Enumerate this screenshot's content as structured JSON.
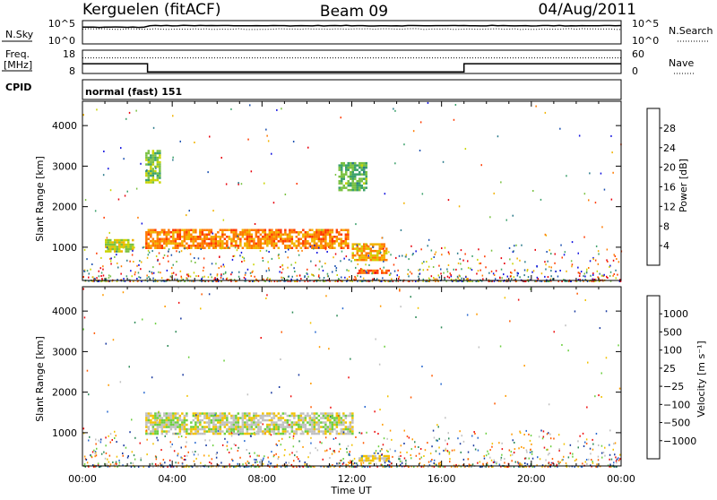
{
  "header": {
    "station": "Kerguelen (fitACF)",
    "beam": "Beam 09",
    "date": "04/Aug/2011"
  },
  "noise_panel": {
    "left_label": "N.Sky",
    "right_label": "N.Search",
    "left_ticks": [
      "10^5",
      "10^0"
    ],
    "right_ticks": [
      "10^5",
      "10^0"
    ]
  },
  "freq_panel": {
    "left_label_line1": "Freq.",
    "left_label_line2": "[MHz]",
    "right_label": "Nave",
    "left_ticks": [
      "18",
      "8"
    ],
    "right_ticks": [
      "60",
      "0"
    ]
  },
  "cpid": {
    "label": "CPID",
    "value": "normal (fast) 151"
  },
  "x_axis": {
    "label": "Time UT",
    "tick_labels": [
      "00:00",
      "04:00",
      "08:00",
      "12:00",
      "16:00",
      "20:00",
      "00:00"
    ]
  },
  "power_panel": {
    "ylabel": "Slant Range [km]",
    "y_ticks": [
      "4000",
      "3000",
      "2000",
      "1000"
    ],
    "colorbar_label": "Power [dB]",
    "colorbar_ticks": [
      "28",
      "24",
      "20",
      "16",
      "12",
      "8",
      "4"
    ],
    "colorbar_colors": [
      "#e8000a",
      "#ff3a00",
      "#ff7a00",
      "#f2b300",
      "#c9d400",
      "#7ac142",
      "#3aa06a",
      "#2a7a8a",
      "#1a4fb0",
      "#1010e0"
    ]
  },
  "velocity_panel": {
    "ylabel": "Slant Range [km]",
    "y_ticks": [
      "4000",
      "3000",
      "2000",
      "1000"
    ],
    "colorbar_label": "Velocity [m s⁻¹]",
    "colorbar_ticks": [
      "1000",
      "500",
      "100",
      "25",
      "−25",
      "−100",
      "−500",
      "−1000"
    ],
    "colorbar_colors": [
      "#1a3aa0",
      "#2a6ad0",
      "#2e8b57",
      "#6ccf3f",
      "#c0c0c0",
      "#f2c200",
      "#ff9a00",
      "#ff5a00",
      "#ee1010"
    ]
  },
  "chart_data": {
    "type": "heatmap",
    "x_range_hours": [
      0,
      24
    ],
    "y_range_km": [
      180,
      4600
    ],
    "panels": [
      {
        "name": "Power",
        "units": "dB",
        "color_range": [
          0,
          30
        ],
        "features": [
          {
            "desc": "main echo band",
            "t_start": 2.8,
            "t_end": 11.8,
            "range_start_km": 1000,
            "range_end_km": 1450,
            "typical_value": 22
          },
          {
            "desc": "echo patch",
            "t_start": 12.0,
            "t_end": 13.5,
            "range_start_km": 700,
            "range_end_km": 1100,
            "typical_value": 20
          },
          {
            "desc": "near range strip",
            "t_start": 12.3,
            "t_end": 13.6,
            "range_start_km": 350,
            "range_end_km": 450,
            "typical_value": 24
          },
          {
            "desc": "upper patch",
            "t_start": 2.8,
            "t_end": 3.4,
            "range_start_km": 2600,
            "range_end_km": 3400,
            "typical_value": 14
          },
          {
            "desc": "upper patch",
            "t_start": 11.4,
            "t_end": 12.6,
            "range_start_km": 2400,
            "range_end_km": 3100,
            "typical_value": 12
          },
          {
            "desc": "patch",
            "t_start": 1.0,
            "t_end": 2.2,
            "range_start_km": 900,
            "range_end_km": 1200,
            "typical_value": 16
          }
        ]
      },
      {
        "name": "Velocity",
        "units": "m s-1",
        "color_range": [
          -1000,
          1000
        ],
        "features": [
          {
            "desc": "main echo band (near zero)",
            "t_start": 2.8,
            "t_end": 12.0,
            "range_start_km": 1000,
            "range_end_km": 1500,
            "typical_value": 0
          },
          {
            "desc": "near range strip",
            "t_start": 12.3,
            "t_end": 13.6,
            "range_start_km": 300,
            "range_end_km": 450,
            "typical_value": -150
          }
        ]
      }
    ],
    "noise_sky_log10": 4.3,
    "noise_search_log10": 3.5,
    "freq_mhz": [
      {
        "t_start": 0,
        "t_end": 2.9,
        "value": 12.2
      },
      {
        "t_start": 2.9,
        "t_end": 17.0,
        "value": 8.7
      },
      {
        "t_start": 17.0,
        "t_end": 24.0,
        "value": 12.2
      }
    ],
    "nave": 40
  }
}
